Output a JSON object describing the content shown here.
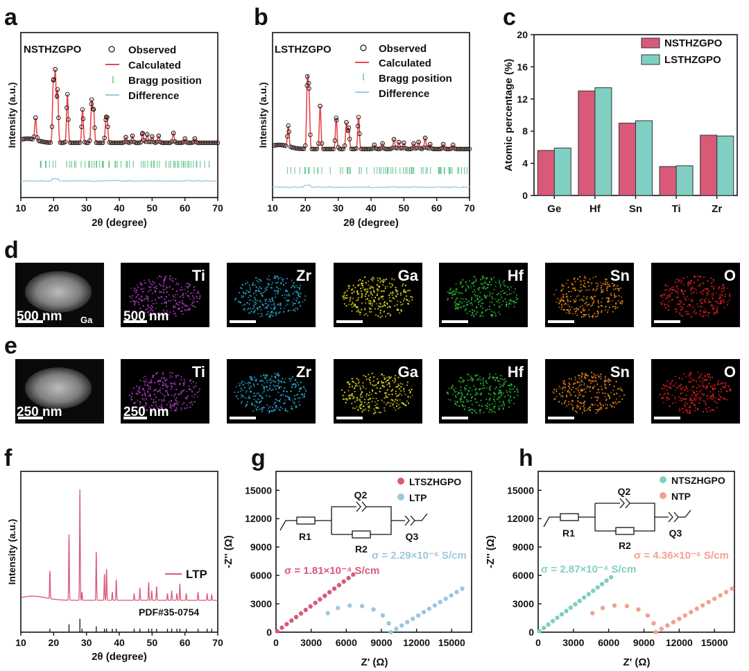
{
  "panels": {
    "a": {
      "letter": "a",
      "sample": "NSTHZGPO",
      "xlabel": "2θ (degree)",
      "ylabel": "Intensity (a.u.)",
      "xticks": [
        "10",
        "20",
        "30",
        "40",
        "50",
        "60",
        "70"
      ],
      "legend": [
        "Observed",
        "Calculated",
        "Bragg position",
        "Difference"
      ]
    },
    "b": {
      "letter": "b",
      "sample": "LSTHZGPO",
      "xlabel": "2θ (degree)",
      "ylabel": "Intensity (a.u.)",
      "xticks": [
        "10",
        "20",
        "30",
        "40",
        "50",
        "60",
        "70"
      ],
      "legend": [
        "Observed",
        "Calculated",
        "Bragg position",
        "Difference"
      ]
    },
    "d": {
      "letter": "d",
      "scale_sem": "500 nm",
      "sem_tag": "Ga",
      "scale_map": "500 nm",
      "elements": [
        "Ti",
        "Zr",
        "Ga",
        "Hf",
        "Sn",
        "O"
      ]
    },
    "e": {
      "letter": "e",
      "scale_sem": "250 nm",
      "scale_map": "250 nm",
      "elements": [
        "Ti",
        "Zr",
        "Ga",
        "Hf",
        "Sn",
        "O"
      ]
    },
    "f": {
      "letter": "f",
      "legend": "LTP",
      "ref": "PDF#35-0754",
      "xlabel": "2θ (degree)",
      "ylabel": "Intensity (a.u.)",
      "xticks": [
        "10",
        "20",
        "30",
        "40",
        "50",
        "60",
        "70"
      ]
    },
    "g": {
      "letter": "g",
      "legend": [
        "LTSZHGPO",
        "LTP"
      ],
      "sigma1": "σ = 1.81×10⁻⁴ S/cm",
      "sigma2": "σ = 2.29×10⁻⁶ S/cm",
      "circuit": [
        "R1",
        "Q2",
        "R2",
        "Q3"
      ],
      "xlabel": "Z' (Ω)",
      "ylabel": "-Z'' (Ω)",
      "xticks": [
        "0",
        "3000",
        "6000",
        "9000",
        "12000",
        "15000"
      ],
      "yticks": [
        "0",
        "3000",
        "6000",
        "9000",
        "12000",
        "15000"
      ]
    },
    "h": {
      "letter": "h",
      "legend": [
        "NTSZHGPO",
        "NTP"
      ],
      "sigma1": "σ = 2.87×10⁻⁴ S/cm",
      "sigma2": "σ = 4.36×10⁻⁶ S/cm",
      "circuit": [
        "R1",
        "Q2",
        "R2",
        "Q3"
      ],
      "xlabel": "Z' (Ω)",
      "ylabel": "-Z'' (Ω)",
      "xticks": [
        "0",
        "3000",
        "6000",
        "9000",
        "12000",
        "15000"
      ],
      "yticks": [
        "0",
        "3000",
        "6000",
        "9000",
        "12000",
        "15000"
      ]
    }
  },
  "colors": {
    "pink": "#d85a78",
    "teal": "#7fcfc3",
    "red": "#e8474a",
    "cyan": "#9cc7e0",
    "ti": "#b040c8",
    "zr": "#2ab0d8",
    "ga": "#e6df22",
    "hf": "#2ec03a",
    "sn": "#f08a1a",
    "o": "#ea2020",
    "ntp": "#f4a090"
  },
  "chart_data": {
    "type": "bar",
    "letter": "c",
    "categories": [
      "Ge",
      "Hf",
      "Sn",
      "Ti",
      "Zr"
    ],
    "series": [
      {
        "name": "NSTHZGPO",
        "values": [
          5.6,
          13.0,
          9.0,
          3.6,
          7.5
        ]
      },
      {
        "name": "LSTHZGPO",
        "values": [
          5.9,
          13.4,
          9.3,
          3.7,
          7.4
        ]
      }
    ],
    "ylabel": "Atomic percentage (%)",
    "ylim": [
      0,
      20
    ],
    "yticks": [
      "0",
      "4",
      "8",
      "12",
      "16",
      "20"
    ]
  }
}
